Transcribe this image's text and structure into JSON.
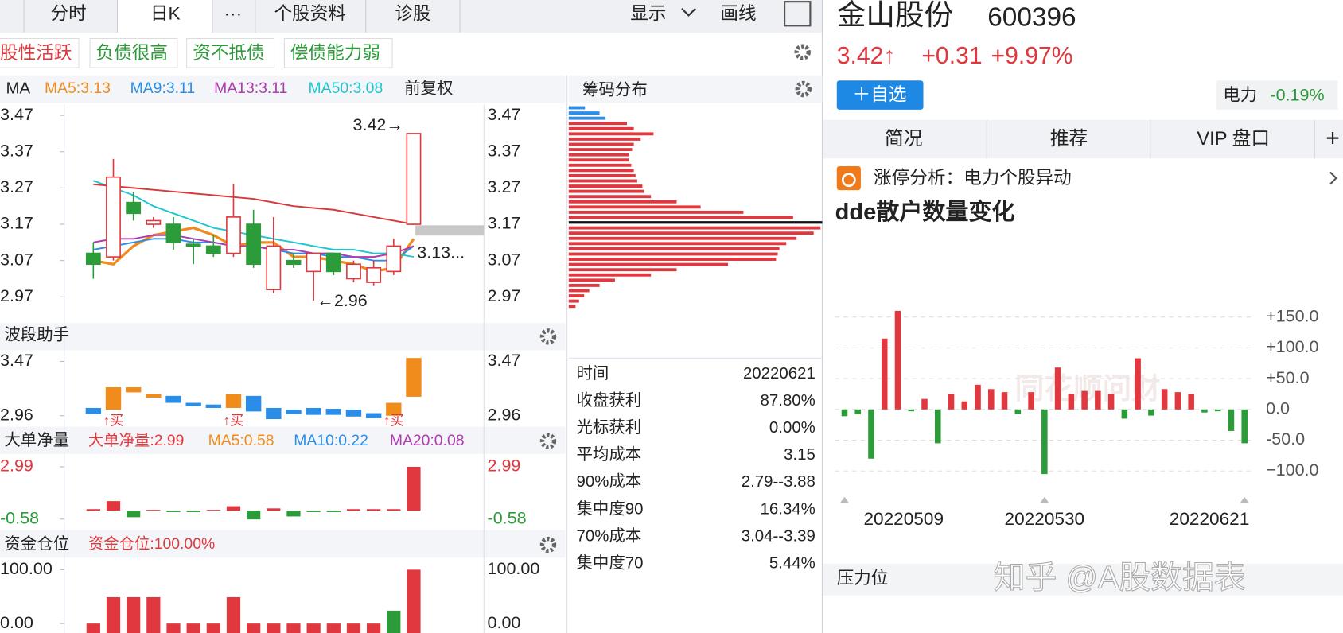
{
  "tabs": [
    "分时",
    "日K",
    "···",
    "个股资料",
    "诊股"
  ],
  "toolbar": [
    "显示",
    "画线"
  ],
  "tags": [
    "股性活跃",
    "负债很高",
    "资不抵债",
    "偿债能力弱"
  ],
  "chart_data": [
    {
      "type": "candlestick",
      "indicator": "MA",
      "adjust": "前复权",
      "open": [
        3.09,
        3.08,
        3.23,
        3.17,
        3.17,
        3.115,
        3.11,
        3.09,
        3.17,
        2.99,
        3.07,
        3.04,
        3.09,
        3.02,
        3.01,
        3.04,
        3.17
      ],
      "high": [
        3.12,
        3.35,
        3.26,
        3.19,
        3.19,
        3.13,
        3.14,
        3.28,
        3.21,
        3.19,
        3.09,
        3.09,
        3.09,
        3.07,
        3.07,
        3.13,
        3.42
      ],
      "low": [
        3.02,
        3.07,
        3.18,
        3.16,
        3.1,
        3.06,
        3.08,
        3.08,
        3.05,
        2.98,
        3.05,
        2.96,
        3.03,
        3.01,
        3.0,
        3.03,
        3.17
      ],
      "close": [
        3.06,
        3.3,
        3.2,
        3.18,
        3.12,
        3.11,
        3.09,
        3.19,
        3.06,
        3.11,
        3.06,
        3.09,
        3.04,
        3.06,
        3.05,
        3.11,
        3.42
      ],
      "up_color": "#e0383e",
      "down_color": "#2c9b3a",
      "series": [
        {
          "name": "MA5:3.13",
          "color": "#f08c1c",
          "values": [
            3.07,
            3.06,
            3.11,
            3.14,
            3.15,
            3.16,
            3.14,
            3.11,
            3.12,
            3.12,
            3.08,
            3.08,
            3.07,
            3.06,
            3.04,
            3.05,
            3.13
          ]
        },
        {
          "name": "MA9:3.11",
          "color": "#2a8ee8",
          "values": [
            3.1,
            3.11,
            3.12,
            3.13,
            3.13,
            3.12,
            3.12,
            3.11,
            3.11,
            3.1,
            3.09,
            3.09,
            3.08,
            3.08,
            3.07,
            3.07,
            3.11
          ]
        },
        {
          "name": "MA13:3.11",
          "color": "#b03ab0",
          "values": [
            3.12,
            3.13,
            3.13,
            3.14,
            3.14,
            3.13,
            3.12,
            3.11,
            3.11,
            3.1,
            3.1,
            3.09,
            3.09,
            3.08,
            3.08,
            3.09,
            3.11
          ]
        },
        {
          "name": "MA50:3.08",
          "color": "#1fc6cf",
          "values": [
            3.29,
            3.27,
            3.25,
            3.22,
            3.2,
            3.18,
            3.16,
            3.15,
            3.14,
            3.13,
            3.12,
            3.11,
            3.1,
            3.1,
            3.09,
            3.09,
            3.08
          ]
        },
        {
          "name": null,
          "color": "#d63a3a",
          "values": [
            3.28,
            3.275,
            3.27,
            3.265,
            3.26,
            3.255,
            3.25,
            3.245,
            3.24,
            3.23,
            3.22,
            3.215,
            3.21,
            3.2,
            3.19,
            3.18,
            3.17
          ]
        }
      ],
      "annotations": [
        "3.42→",
        "←2.96",
        "3.13..."
      ],
      "ylim": [
        2.91,
        3.5
      ],
      "yticks": [
        3.47,
        3.37,
        3.27,
        3.17,
        3.07,
        2.97
      ]
    },
    {
      "type": "floating-bar",
      "title": "波段助手",
      "top": [
        3.033,
        3.227,
        3.227,
        3.162,
        3.146,
        3.081,
        3.065,
        3.162,
        3.146,
        3.033,
        3.017,
        3.033,
        3.025,
        3.017,
        2.984,
        3.081,
        3.502
      ],
      "bottom": [
        2.976,
        3.017,
        3.179,
        3.13,
        3.081,
        3.049,
        3.033,
        3.033,
        3.0,
        2.928,
        2.976,
        2.968,
        2.968,
        2.952,
        2.936,
        2.96,
        3.138
      ],
      "colors": [
        "#2a8ee8",
        "#f08c1c",
        "#f08c1c",
        "#f08c1c",
        "#2a8ee8",
        "#2a8ee8",
        "#2a8ee8",
        "#f08c1c",
        "#2a8ee8",
        "#2a8ee8",
        "#2a8ee8",
        "#2a8ee8",
        "#2a8ee8",
        "#2a8ee8",
        "#2a8ee8",
        "#f08c1c",
        "#f08c1c"
      ],
      "signal_labels": [
        null,
        "↑买",
        null,
        null,
        null,
        null,
        null,
        "↑买",
        null,
        null,
        null,
        null,
        null,
        null,
        null,
        "↑买",
        null
      ],
      "ylim": [
        2.89,
        3.55
      ],
      "yticks": [
        3.47,
        2.96
      ]
    },
    {
      "type": "bar",
      "title": "大单净量",
      "legend": [
        {
          "name": "大单净量:2.99",
          "color": "#e0383e"
        },
        {
          "name": "MA5:0.58",
          "color": "#f08c1c"
        },
        {
          "name": "MA10:0.22",
          "color": "#2a8ee8"
        },
        {
          "name": "MA20:0.08",
          "color": "#b03ab0"
        }
      ],
      "values": [
        0.1,
        0.65,
        -0.45,
        0.05,
        -0.1,
        -0.1,
        0.05,
        0.3,
        -0.6,
        0.15,
        -0.4,
        -0.1,
        -0.1,
        0.1,
        0.1,
        0.1,
        2.99
      ],
      "up_color": "#e0383e",
      "down_color": "#2c9b3a",
      "ylim": [
        -1.28,
        3.69
      ],
      "yticks": [
        2.99,
        -0.58
      ],
      "ytick_colors": [
        "#e0383e",
        "#2c9b3a"
      ]
    },
    {
      "type": "bar",
      "title": "资金仓位",
      "legend": [
        {
          "name": "资金仓位:100.00%",
          "color": "#e0383e"
        }
      ],
      "values": [
        0,
        49,
        49,
        49,
        0,
        0,
        0,
        49,
        0,
        0,
        0,
        0,
        0,
        0,
        0,
        24,
        100
      ],
      "colors": [
        "#e0383e",
        "#e0383e",
        "#e0383e",
        "#e0383e",
        "#e0383e",
        "#e0383e",
        "#e0383e",
        "#e0383e",
        "#e0383e",
        "#e0383e",
        "#e0383e",
        "#e0383e",
        "#e0383e",
        "#e0383e",
        "#e0383e",
        "#2c9b3a",
        "#e0383e"
      ],
      "ylim": [
        -17.5,
        116
      ],
      "yticks": [
        {
          "value": 100,
          "label": "100.00"
        },
        {
          "value": 0,
          "label": "0.00"
        }
      ]
    },
    {
      "type": "hbar",
      "title": "筹码分布",
      "values": [
        19,
        36,
        43,
        68,
        76,
        99,
        84,
        76,
        74,
        70,
        70,
        73,
        76,
        78,
        80,
        86,
        88,
        96,
        126,
        154,
        204,
        262,
        296,
        294,
        286,
        266,
        254,
        246,
        244,
        242,
        186,
        126,
        96,
        54,
        36,
        24,
        18,
        12,
        8
      ],
      "colors": [
        "#2a8ee8",
        "#2a8ee8",
        "#2a8ee8",
        "#e0383e",
        "#e0383e",
        "#e0383e",
        "#e0383e",
        "#e0383e",
        "#e0383e",
        "#e0383e",
        "#e0383e",
        "#e0383e",
        "#e0383e",
        "#e0383e",
        "#e0383e",
        "#e0383e",
        "#e0383e",
        "#e0383e",
        "#e0383e",
        "#e0383e",
        "#e0383e",
        "#e0383e",
        "#111111",
        "#e0383e",
        "#e0383e",
        "#e0383e",
        "#e0383e",
        "#e0383e",
        "#e0383e",
        "#e0383e",
        "#e0383e",
        "#e0383e",
        "#e0383e",
        "#e0383e",
        "#e0383e",
        "#e0383e",
        "#e0383e",
        "#e0383e",
        "#e0383e"
      ]
    },
    {
      "type": "bar",
      "title": "dde散户数量变化",
      "watermark": "同花顺问财",
      "categories": [
        "20220509",
        null,
        null,
        null,
        null,
        null,
        null,
        null,
        null,
        null,
        null,
        null,
        null,
        null,
        null,
        "20220530",
        null,
        null,
        null,
        null,
        null,
        null,
        null,
        null,
        null,
        null,
        null,
        null,
        null,
        null,
        "20220621"
      ],
      "values": [
        -11,
        -8,
        -80,
        115,
        160,
        -3,
        17,
        -55,
        25,
        13,
        40,
        33,
        28,
        -8,
        28,
        -105,
        68,
        25,
        30,
        30,
        25,
        -15,
        83,
        -10,
        33,
        28,
        25,
        -5,
        -3,
        -35,
        -55
      ],
      "up_color": "#e0383e",
      "down_color": "#2c9b3a",
      "ylim": [
        -135,
        178
      ],
      "yticks": [
        {
          "value": 150,
          "label": "+150.0"
        },
        {
          "value": 100,
          "label": "+100.0"
        },
        {
          "value": 50,
          "label": "+50.0"
        },
        {
          "value": 0,
          "label": "0.0"
        },
        {
          "value": -50,
          "label": "-50.0"
        },
        {
          "value": -100,
          "label": "−100.0"
        }
      ],
      "grid": true
    }
  ],
  "chip_stats": [
    [
      "时间",
      "20220621"
    ],
    [
      "收盘获利",
      "87.80%"
    ],
    [
      "光标获利",
      "0.00%"
    ],
    [
      "平均成本",
      "3.15"
    ],
    [
      "90%成本",
      "2.79--3.88"
    ],
    [
      "集中度90",
      "16.34%"
    ],
    [
      "70%成本",
      "3.04--3.39"
    ],
    [
      "集中度70",
      "5.44%"
    ]
  ],
  "stock": {
    "name": "金山股份",
    "code": "600396",
    "price": "3.42↑",
    "change": "+0.31",
    "change_pct": "+9.97%",
    "add_button": "＋自选",
    "sector": "电力",
    "sector_change": "-0.19%"
  },
  "right_tabs": [
    "简况",
    "推荐",
    "VIP 盘口",
    "+"
  ],
  "limit_analysis": "涨停分析：电力个股异动",
  "pressure": "压力位",
  "watermark": "知乎 @A股数据表"
}
